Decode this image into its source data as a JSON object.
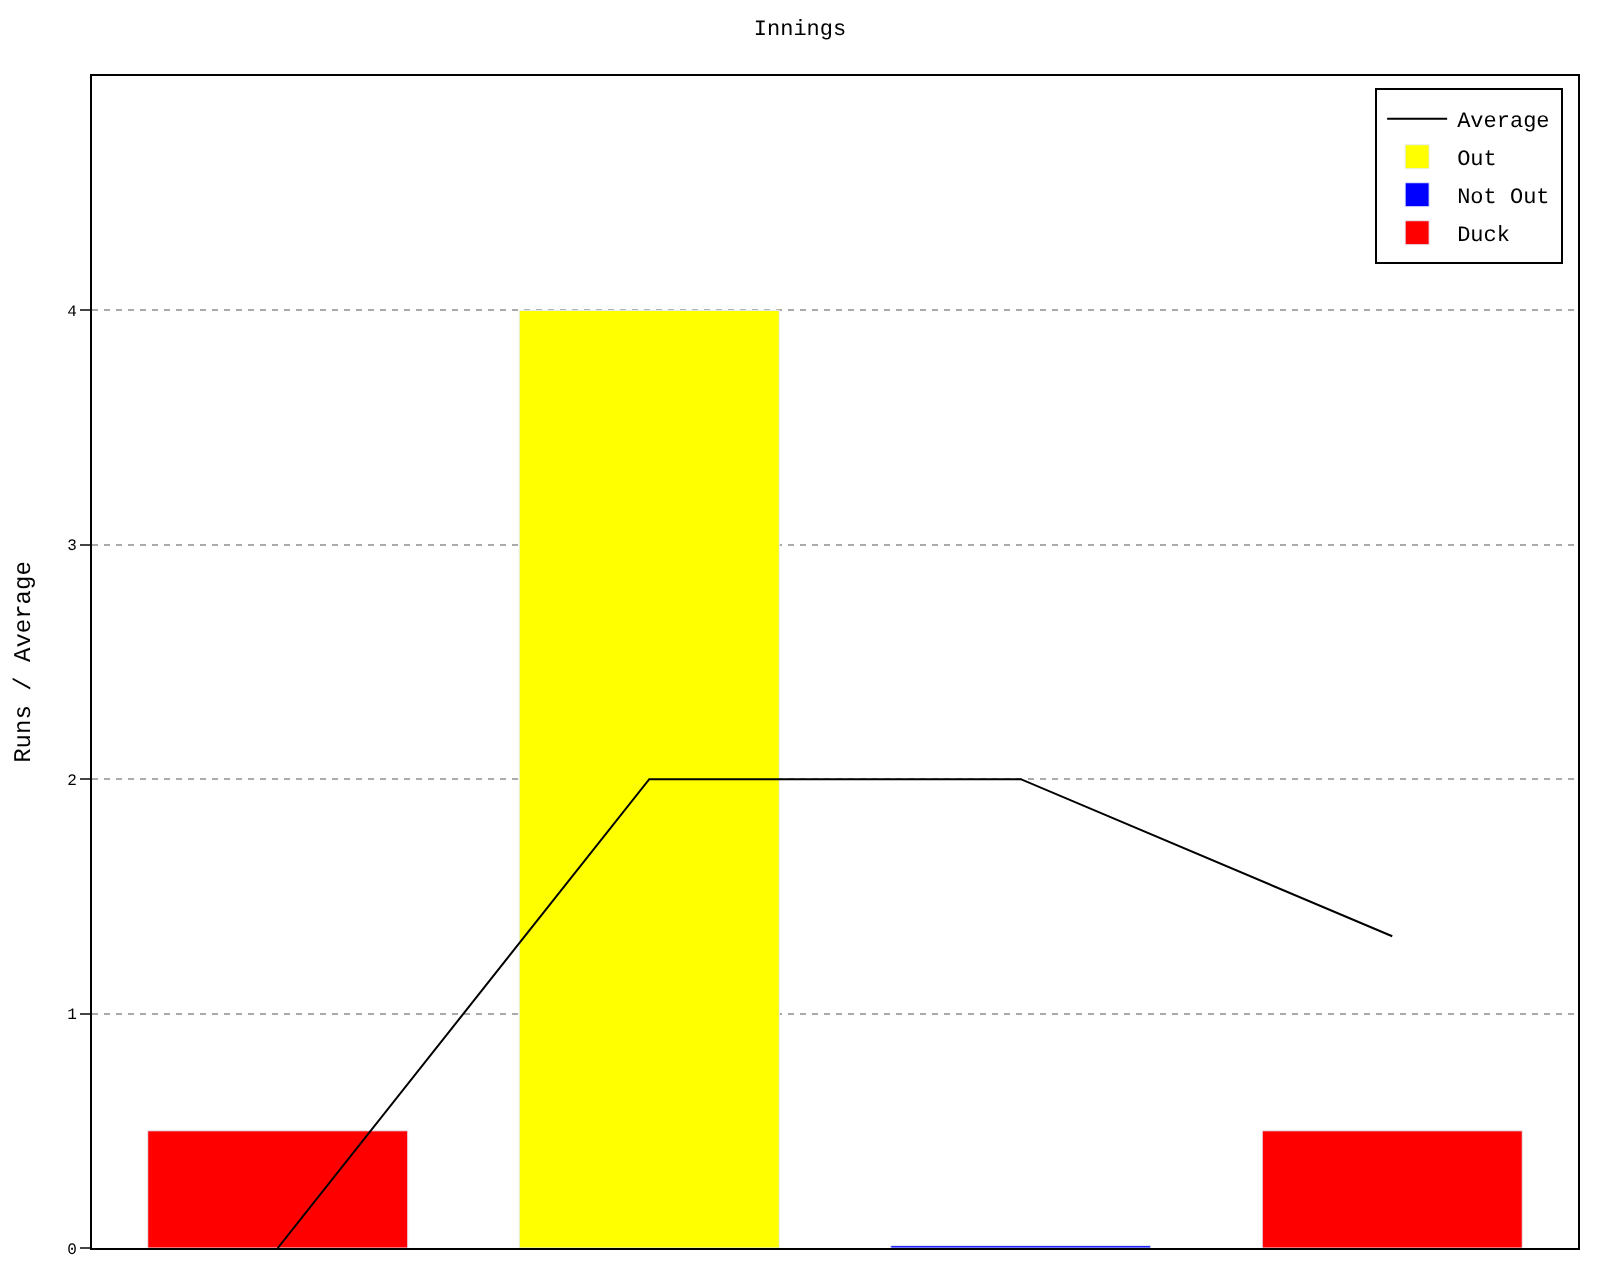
{
  "chart_data": {
    "type": "bar",
    "title": "Innings",
    "ylabel": "Runs / Average",
    "categories": [
      null,
      null,
      null,
      null
    ],
    "series": [
      {
        "name": "Average",
        "type": "line",
        "color": "#000000",
        "values": [
          0,
          2,
          2,
          1.33
        ]
      },
      {
        "name": "Out",
        "color": "#ffff00",
        "values": [
          null,
          4,
          null,
          null
        ]
      },
      {
        "name": "Not Out",
        "color": "#0000ff",
        "values": [
          null,
          null,
          0.01,
          null
        ]
      },
      {
        "name": "Duck",
        "color": "#ff0000",
        "values": [
          0.5,
          null,
          null,
          0.5
        ]
      }
    ],
    "ylim": [
      0,
      5
    ],
    "yticks": [
      0,
      1,
      2,
      3,
      4
    ],
    "grid": "y",
    "legend": "top right",
    "marker": "none"
  }
}
